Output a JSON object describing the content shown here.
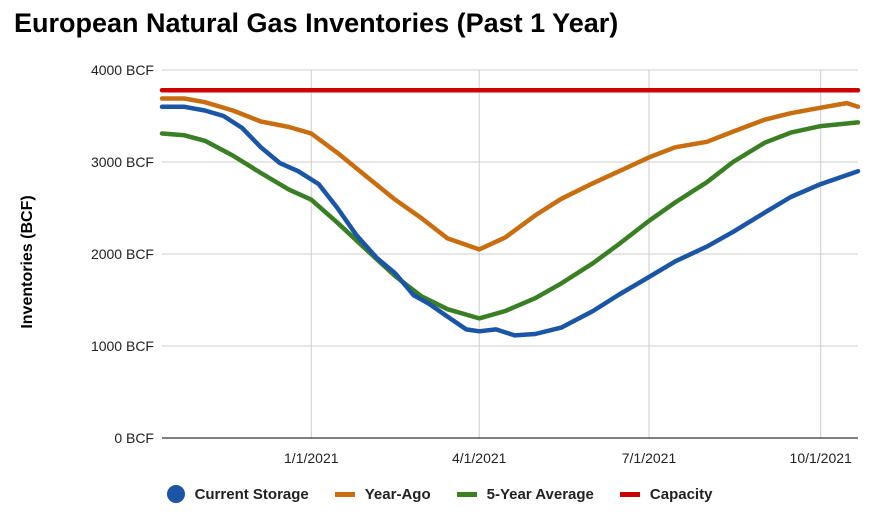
{
  "chart_data": {
    "type": "line",
    "title": "European Natural Gas Inventories (Past 1 Year)",
    "xlabel": "",
    "ylabel": "Inventories (BCF)",
    "x_range": [
      "2020-10-13",
      "2021-10-21"
    ],
    "ylim": [
      0,
      4000
    ],
    "y_ticks": [
      0,
      1000,
      2000,
      3000,
      4000
    ],
    "y_tick_labels": [
      "0 BCF",
      "1000 BCF",
      "2000 BCF",
      "3000 BCF",
      "4000 BCF"
    ],
    "x_ticks": [
      "2021-01-01",
      "2021-04-01",
      "2021-07-01",
      "2021-10-01"
    ],
    "x_tick_labels": [
      "1/1/2021",
      "4/1/2021",
      "7/1/2021",
      "10/1/2021"
    ],
    "grid": true,
    "legend_position": "bottom",
    "series": [
      {
        "name": "Current Storage",
        "color": "#1a56a5",
        "marker": "circle",
        "points": [
          [
            "2020-10-13",
            3600
          ],
          [
            "2020-10-25",
            3600
          ],
          [
            "2020-11-05",
            3560
          ],
          [
            "2020-11-15",
            3500
          ],
          [
            "2020-11-25",
            3370
          ],
          [
            "2020-12-05",
            3160
          ],
          [
            "2020-12-15",
            2990
          ],
          [
            "2020-12-25",
            2900
          ],
          [
            "2021-01-05",
            2760
          ],
          [
            "2021-01-15",
            2500
          ],
          [
            "2021-01-25",
            2210
          ],
          [
            "2021-02-05",
            1960
          ],
          [
            "2021-02-15",
            1790
          ],
          [
            "2021-02-25",
            1550
          ],
          [
            "2021-03-05",
            1460
          ],
          [
            "2021-03-15",
            1320
          ],
          [
            "2021-03-25",
            1180
          ],
          [
            "2021-04-01",
            1160
          ],
          [
            "2021-04-10",
            1180
          ],
          [
            "2021-04-20",
            1115
          ],
          [
            "2021-05-01",
            1130
          ],
          [
            "2021-05-15",
            1200
          ],
          [
            "2021-06-01",
            1380
          ],
          [
            "2021-06-15",
            1560
          ],
          [
            "2021-07-01",
            1750
          ],
          [
            "2021-07-15",
            1920
          ],
          [
            "2021-08-01",
            2080
          ],
          [
            "2021-08-15",
            2240
          ],
          [
            "2021-09-01",
            2450
          ],
          [
            "2021-09-15",
            2620
          ],
          [
            "2021-10-01",
            2760
          ],
          [
            "2021-10-21",
            2900
          ]
        ]
      },
      {
        "name": "Year-Ago",
        "color": "#c86e10",
        "marker": "line",
        "points": [
          [
            "2020-10-13",
            3690
          ],
          [
            "2020-10-25",
            3690
          ],
          [
            "2020-11-05",
            3650
          ],
          [
            "2020-11-20",
            3560
          ],
          [
            "2020-12-05",
            3440
          ],
          [
            "2020-12-20",
            3380
          ],
          [
            "2021-01-01",
            3310
          ],
          [
            "2021-01-15",
            3100
          ],
          [
            "2021-02-01",
            2820
          ],
          [
            "2021-02-15",
            2590
          ],
          [
            "2021-03-01",
            2390
          ],
          [
            "2021-03-15",
            2170
          ],
          [
            "2021-04-01",
            2050
          ],
          [
            "2021-04-15",
            2180
          ],
          [
            "2021-05-01",
            2420
          ],
          [
            "2021-05-15",
            2600
          ],
          [
            "2021-06-01",
            2770
          ],
          [
            "2021-06-15",
            2900
          ],
          [
            "2021-07-01",
            3050
          ],
          [
            "2021-07-15",
            3160
          ],
          [
            "2021-08-01",
            3220
          ],
          [
            "2021-08-15",
            3330
          ],
          [
            "2021-09-01",
            3460
          ],
          [
            "2021-09-15",
            3530
          ],
          [
            "2021-10-01",
            3590
          ],
          [
            "2021-10-15",
            3640
          ],
          [
            "2021-10-21",
            3600
          ]
        ]
      },
      {
        "name": "5-Year Average",
        "color": "#3b7f25",
        "marker": "line",
        "points": [
          [
            "2020-10-13",
            3310
          ],
          [
            "2020-10-25",
            3290
          ],
          [
            "2020-11-05",
            3230
          ],
          [
            "2020-11-20",
            3070
          ],
          [
            "2020-12-05",
            2880
          ],
          [
            "2020-12-20",
            2700
          ],
          [
            "2021-01-01",
            2590
          ],
          [
            "2021-01-15",
            2340
          ],
          [
            "2021-02-01",
            2020
          ],
          [
            "2021-02-15",
            1760
          ],
          [
            "2021-03-01",
            1540
          ],
          [
            "2021-03-15",
            1400
          ],
          [
            "2021-04-01",
            1300
          ],
          [
            "2021-04-15",
            1380
          ],
          [
            "2021-05-01",
            1520
          ],
          [
            "2021-05-15",
            1680
          ],
          [
            "2021-06-01",
            1900
          ],
          [
            "2021-06-15",
            2110
          ],
          [
            "2021-07-01",
            2360
          ],
          [
            "2021-07-15",
            2560
          ],
          [
            "2021-08-01",
            2780
          ],
          [
            "2021-08-15",
            3000
          ],
          [
            "2021-09-01",
            3210
          ],
          [
            "2021-09-15",
            3320
          ],
          [
            "2021-10-01",
            3390
          ],
          [
            "2021-10-21",
            3430
          ]
        ]
      },
      {
        "name": "Capacity",
        "color": "#cc0000",
        "marker": "line",
        "points": [
          [
            "2020-10-13",
            3780
          ],
          [
            "2021-10-21",
            3780
          ]
        ]
      }
    ]
  }
}
